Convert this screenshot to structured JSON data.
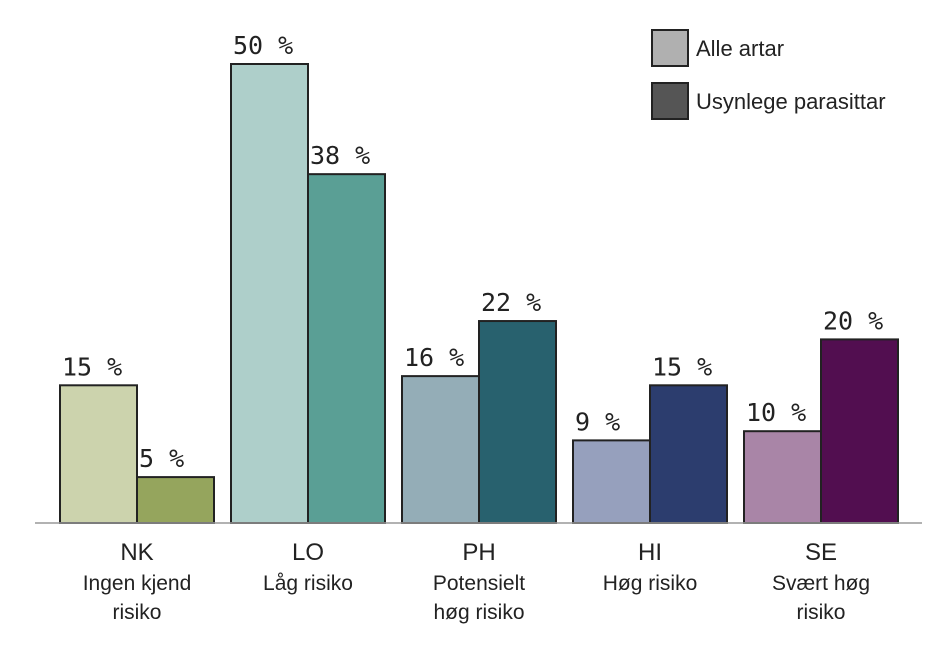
{
  "chart_data": {
    "type": "bar",
    "categories": [
      {
        "code": "NK",
        "desc": [
          "Ingen kjend",
          "risiko"
        ]
      },
      {
        "code": "LO",
        "desc": [
          "Låg risiko"
        ]
      },
      {
        "code": "PH",
        "desc": [
          "Potensielt",
          "høg risiko"
        ]
      },
      {
        "code": "HI",
        "desc": [
          "Høg risiko"
        ]
      },
      {
        "code": "SE",
        "desc": [
          "Svært høg",
          "risiko"
        ]
      }
    ],
    "series": [
      {
        "name": "Alle artar",
        "values": [
          15,
          50,
          16,
          9,
          10
        ],
        "colors": [
          "#ccd3ad",
          "#aecfca",
          "#94adb7",
          "#96a0bd",
          "#a985a7"
        ]
      },
      {
        "name": "Usynlege parasittar",
        "values": [
          5,
          38,
          22,
          15,
          20
        ],
        "colors": [
          "#95a55d",
          "#5a9f95",
          "#28616e",
          "#2c3d6e",
          "#520e50"
        ]
      }
    ],
    "value_suffix": " %",
    "ylim": [
      0,
      50
    ],
    "grid": false,
    "legend": {
      "placement": "top-right",
      "items": [
        {
          "label": "Alle artar",
          "color": "#b0b0b0"
        },
        {
          "label": "Usynlege parasittar",
          "color": "#555555"
        }
      ]
    }
  }
}
